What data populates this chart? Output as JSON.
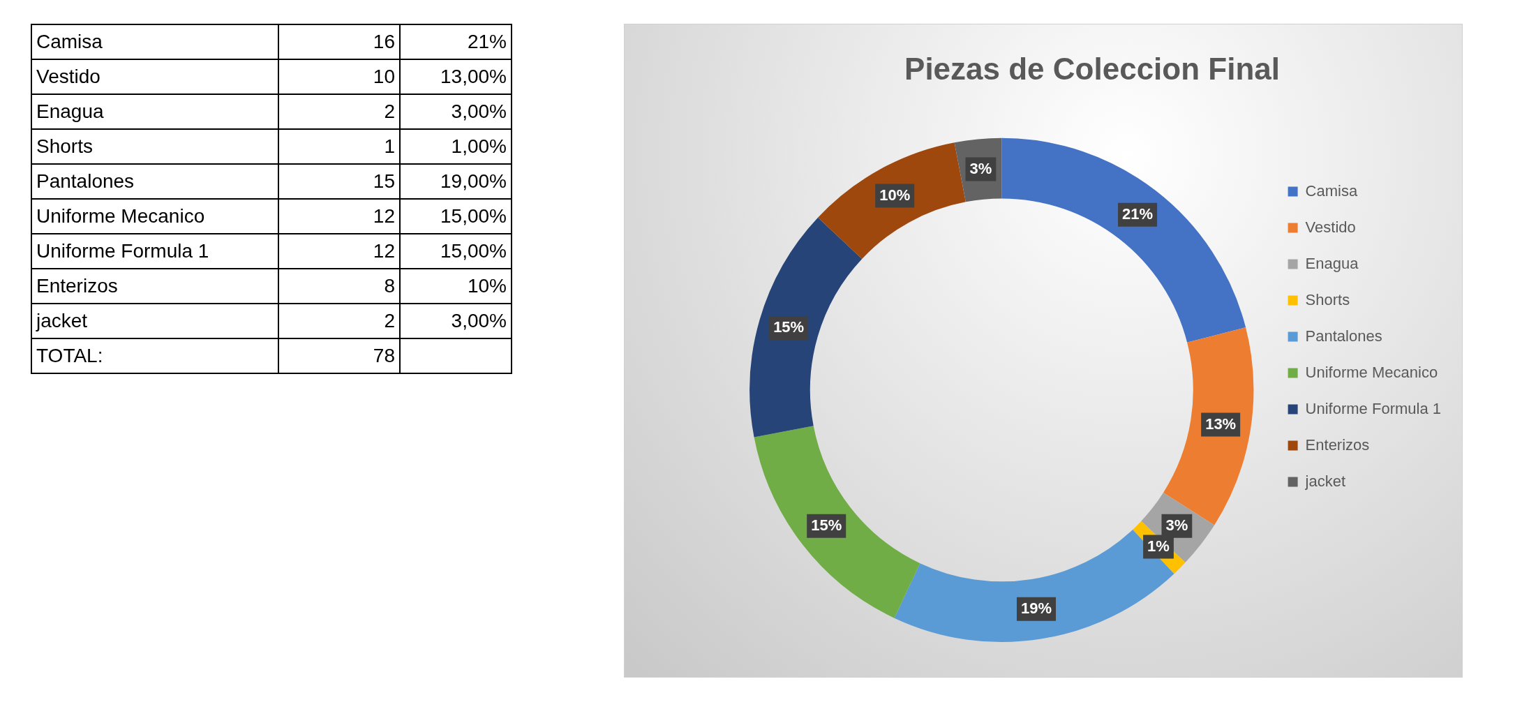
{
  "chart_data": {
    "type": "donut",
    "title": "Piezas de Coleccion Final",
    "categories": [
      "Camisa",
      "Vestido",
      "Enagua",
      "Shorts",
      "Pantalones",
      "Uniforme Mecanico",
      "Uniforme Formula 1",
      "Enterizos",
      "jacket"
    ],
    "values": [
      21,
      13,
      3,
      1,
      19,
      15,
      15,
      10,
      3
    ],
    "value_labels": [
      "21%",
      "13%",
      "3%",
      "1%",
      "19%",
      "15%",
      "15%",
      "10%",
      "3%"
    ],
    "colors": [
      "#4472c4",
      "#ed7d31",
      "#a5a5a5",
      "#ffc000",
      "#5b9bd5",
      "#70ad47",
      "#264478",
      "#9e480e",
      "#636363"
    ],
    "legend": "right",
    "annotations": [
      "16",
      "10",
      "2",
      "1",
      "15",
      "12",
      "12",
      "8",
      "2",
      "21%",
      "13,00%",
      "3,00%",
      "1,00%",
      "19,00%",
      "15,00%",
      "15,00%",
      "10%",
      "3,00%",
      "TOTAL:",
      "78"
    ]
  }
}
